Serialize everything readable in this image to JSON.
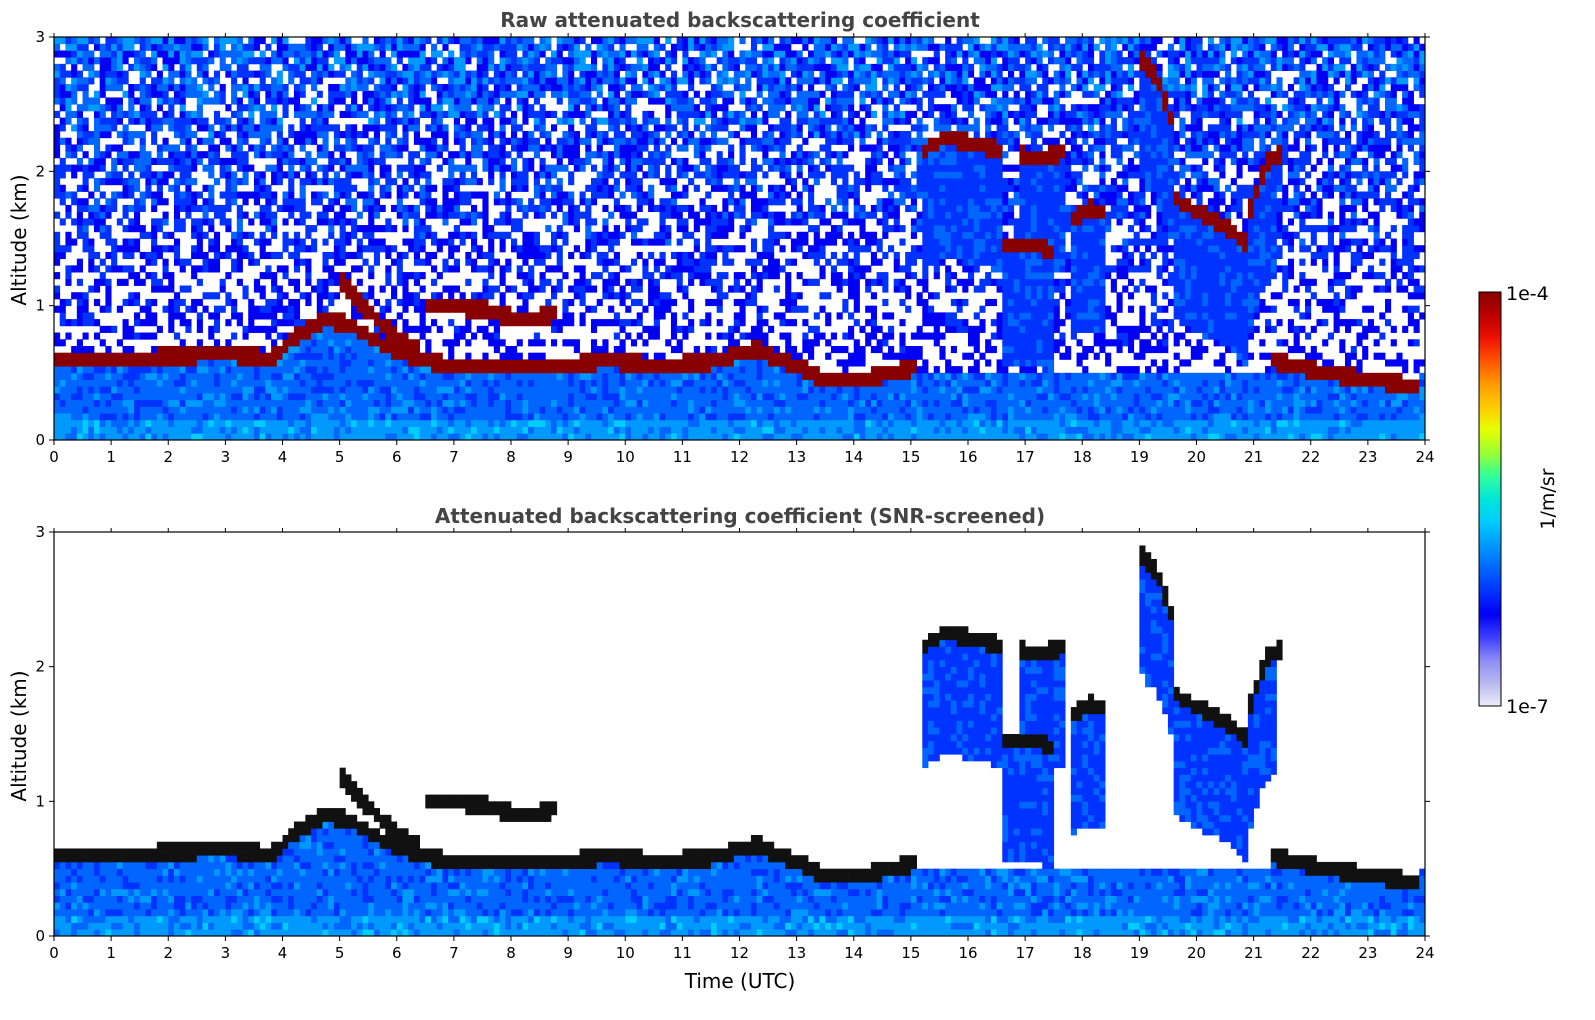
{
  "chart_data": [
    {
      "type": "heatmap",
      "title": "Raw attenuated backscattering coefficient",
      "xlabel": "",
      "ylabel": "Altitude (km)",
      "xlim": [
        0,
        24
      ],
      "ylim": [
        0,
        3
      ],
      "xticks": [
        "0",
        "1",
        "2",
        "3",
        "4",
        "5",
        "6",
        "7",
        "8",
        "9",
        "10",
        "11",
        "12",
        "13",
        "14",
        "15",
        "16",
        "17",
        "18",
        "19",
        "20",
        "21",
        "22",
        "23",
        "24"
      ],
      "yticks": [
        "0",
        "1",
        "2",
        "3"
      ],
      "screened": false,
      "layers": [
        {
          "name": "boundary-layer top",
          "points": [
            [
              0,
              0.6
            ],
            [
              1,
              0.6
            ],
            [
              2,
              0.62
            ],
            [
              3,
              0.65
            ],
            [
              3.8,
              0.6
            ],
            [
              4.3,
              0.8
            ],
            [
              4.8,
              0.9
            ],
            [
              5.2,
              0.85
            ],
            [
              5.8,
              0.7
            ],
            [
              6.4,
              0.6
            ],
            [
              7,
              0.55
            ],
            [
              8,
              0.55
            ],
            [
              9,
              0.55
            ],
            [
              9.7,
              0.6
            ],
            [
              10.5,
              0.55
            ],
            [
              11.5,
              0.58
            ],
            [
              12.3,
              0.68
            ],
            [
              13,
              0.55
            ],
            [
              13.5,
              0.45
            ],
            [
              14.2,
              0.45
            ],
            [
              15.1,
              0.55
            ]
          ]
        },
        {
          "name": "aerosol layer",
          "points": [
            [
              6.5,
              1.0
            ],
            [
              7.5,
              0.98
            ],
            [
              8.2,
              0.88
            ],
            [
              8.8,
              0.95
            ]
          ]
        },
        {
          "name": "descending layer",
          "points": [
            [
              5.0,
              1.2
            ],
            [
              5.4,
              1.0
            ],
            [
              5.9,
              0.8
            ],
            [
              6.4,
              0.65
            ]
          ]
        },
        {
          "name": "upper cloud",
          "points": [
            [
              15.2,
              2.15
            ],
            [
              15.6,
              2.25
            ],
            [
              16.0,
              2.22
            ],
            [
              16.6,
              2.15
            ]
          ]
        },
        {
          "name": "upper cloud 2",
          "points": [
            [
              16.9,
              2.12
            ],
            [
              17.3,
              2.1
            ],
            [
              17.7,
              2.15
            ]
          ]
        },
        {
          "name": "mid cloud",
          "points": [
            [
              16.6,
              1.45
            ],
            [
              17.2,
              1.45
            ],
            [
              17.5,
              1.4
            ]
          ]
        },
        {
          "name": "mid cloud 2",
          "points": [
            [
              17.8,
              1.65
            ],
            [
              18.1,
              1.72
            ],
            [
              18.4,
              1.7
            ]
          ]
        },
        {
          "name": "high cloud",
          "points": [
            [
              19.0,
              2.85
            ],
            [
              19.3,
              2.7
            ],
            [
              19.6,
              2.35
            ]
          ]
        },
        {
          "name": "evening cloud",
          "points": [
            [
              19.6,
              1.8
            ],
            [
              20.0,
              1.7
            ],
            [
              20.5,
              1.6
            ],
            [
              20.9,
              1.45
            ]
          ]
        },
        {
          "name": "evening cloud 2",
          "points": [
            [
              20.9,
              1.65
            ],
            [
              21.2,
              2.05
            ],
            [
              21.5,
              2.15
            ]
          ]
        },
        {
          "name": "night boundary layer",
          "points": [
            [
              21.3,
              0.6
            ],
            [
              22,
              0.52
            ],
            [
              23,
              0.45
            ],
            [
              23.9,
              0.4
            ]
          ]
        }
      ]
    },
    {
      "type": "heatmap",
      "title": "Attenuated backscattering coefficient (SNR-screened)",
      "xlabel": "Time (UTC)",
      "ylabel": "Altitude (km)",
      "xlim": [
        0,
        24
      ],
      "ylim": [
        0,
        3
      ],
      "xticks": [
        "0",
        "1",
        "2",
        "3",
        "4",
        "5",
        "6",
        "7",
        "8",
        "9",
        "10",
        "11",
        "12",
        "13",
        "14",
        "15",
        "16",
        "17",
        "18",
        "19",
        "20",
        "21",
        "22",
        "23",
        "24"
      ],
      "yticks": [
        "0",
        "1",
        "2",
        "3"
      ],
      "screened": true
    }
  ],
  "colorbar": {
    "top_label": "1e-4",
    "bottom_label": "1e-7",
    "unit": "1/m/sr",
    "colors": [
      "#ededfa",
      "#b8b8f0",
      "#8c8cf5",
      "#3c3cff",
      "#0000f5",
      "#0033ff",
      "#0066ff",
      "#0099ff",
      "#00ccff",
      "#00e6d9",
      "#33ff99",
      "#99ff33",
      "#e6ff00",
      "#ffcc00",
      "#ff9900",
      "#ff5500",
      "#ee1100",
      "#bb0000",
      "#880000"
    ]
  }
}
